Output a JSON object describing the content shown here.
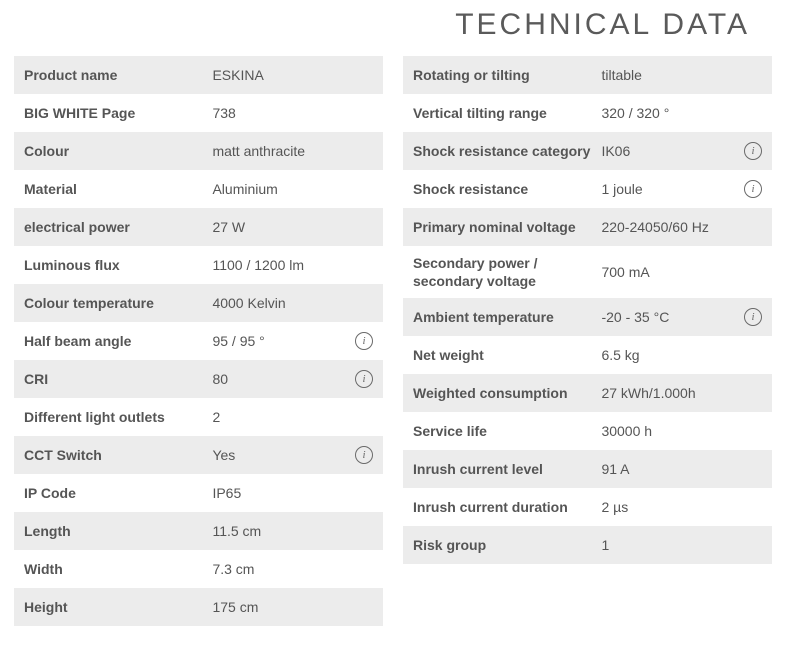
{
  "title": "TECHNICAL DATA",
  "colors": {
    "row_alt_bg": "#ececec",
    "text": "#555555",
    "icon_border": "#6a6a6a"
  },
  "left": [
    {
      "label": "Product name",
      "value": "ESKINA",
      "info": false
    },
    {
      "label": "BIG WHITE Page",
      "value": "738",
      "info": false
    },
    {
      "label": "Colour",
      "value": "matt anthracite",
      "info": false
    },
    {
      "label": "Material",
      "value": "Aluminium",
      "info": false
    },
    {
      "label": "electrical power",
      "value": "27 W",
      "info": false
    },
    {
      "label": "Luminous flux",
      "value": "1100 / 1200 lm",
      "info": false
    },
    {
      "label": "Colour temperature",
      "value": "4000 Kelvin",
      "info": false
    },
    {
      "label": "Half beam angle",
      "value": "95 / 95 °",
      "info": true
    },
    {
      "label": "CRI",
      "value": "80",
      "info": true
    },
    {
      "label": "Different light outlets",
      "value": "2",
      "info": false
    },
    {
      "label": "CCT Switch",
      "value": "Yes",
      "info": true
    },
    {
      "label": "IP Code",
      "value": "IP65",
      "info": false
    },
    {
      "label": "Length",
      "value": "11.5 cm",
      "info": false
    },
    {
      "label": "Width",
      "value": "7.3 cm",
      "info": false
    },
    {
      "label": "Height",
      "value": "175 cm",
      "info": false
    }
  ],
  "right": [
    {
      "label": "Rotating or tilting",
      "value": "tiltable",
      "info": false
    },
    {
      "label": "Vertical tilting range",
      "value": "320 / 320 °",
      "info": false
    },
    {
      "label": "Shock resistance category",
      "value": "IK06",
      "info": true
    },
    {
      "label": "Shock resistance",
      "value": "1 joule",
      "info": true
    },
    {
      "label": "Primary nominal voltage",
      "value": "220-24050/60 Hz",
      "info": false
    },
    {
      "label": "Secondary power / secondary voltage",
      "value": "700 mA",
      "info": false
    },
    {
      "label": "Ambient temperature",
      "value": "-20 - 35 °C",
      "info": true
    },
    {
      "label": "Net weight",
      "value": "6.5 kg",
      "info": false
    },
    {
      "label": "Weighted consumption",
      "value": "27 kWh/1.000h",
      "info": false
    },
    {
      "label": "Service life",
      "value": "30000 h",
      "info": false
    },
    {
      "label": "Inrush current level",
      "value": "91 A",
      "info": false
    },
    {
      "label": "Inrush current duration",
      "value": "2 µs",
      "info": false
    },
    {
      "label": "Risk group",
      "value": "1",
      "info": false
    }
  ]
}
